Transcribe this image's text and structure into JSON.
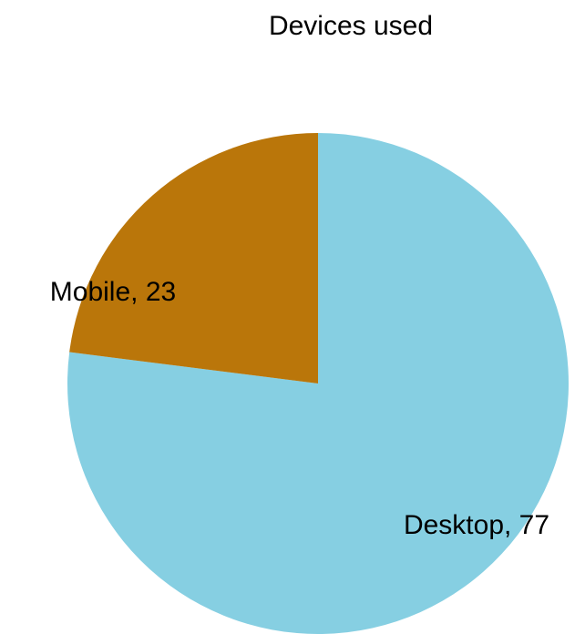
{
  "chart_data": {
    "type": "pie",
    "title": "Devices used",
    "values": [
      77,
      23
    ],
    "value_labels": [
      "Desktop, 77",
      "Mobile, 23"
    ],
    "colors": [
      "#86cfe2",
      "#ba760a"
    ]
  }
}
